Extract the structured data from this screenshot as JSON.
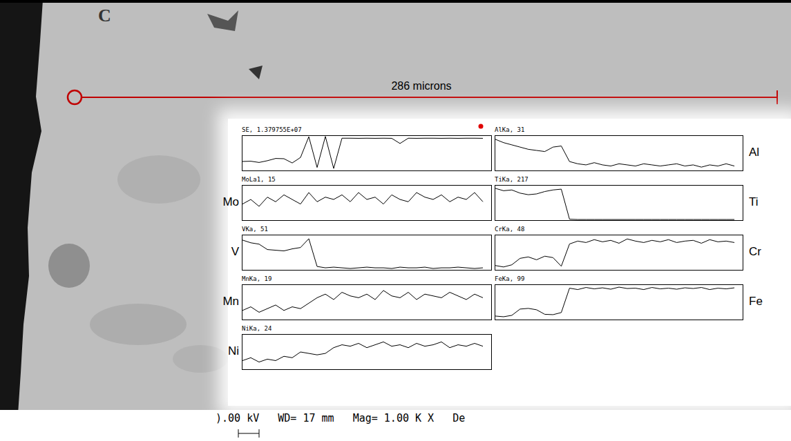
{
  "micrograph": {
    "label": "C",
    "scale_bar": "286 microns",
    "footer": ").00 kV   WD= 17 mm   Mag= 1.00 K X   De"
  },
  "chart_data": [
    {
      "type": "line",
      "title": "SE, 1.379755E+07",
      "tick_labels": false,
      "x": [
        0,
        1,
        2,
        3,
        4,
        5,
        6,
        7,
        8,
        9,
        10,
        11,
        12,
        13,
        14,
        15,
        16,
        17,
        18,
        19,
        20,
        21,
        22,
        23,
        24,
        25,
        26,
        27,
        28,
        29
      ],
      "values": [
        3600000,
        3700000,
        3200000,
        3900000,
        4800000,
        4700000,
        3000000,
        5200000,
        13500000,
        1200000,
        13600000,
        800000,
        12900000,
        12900000,
        12850000,
        12900000,
        12850000,
        12900000,
        12850000,
        10800000,
        12900000,
        12850000,
        12900000,
        12900000,
        12850000,
        12900000,
        12850000,
        12900000,
        12900000,
        12850000
      ],
      "xlim": [
        0,
        30
      ],
      "xticks": [
        0,
        3,
        6,
        9,
        12,
        15,
        18,
        21,
        24,
        27,
        30
      ],
      "ylim": [
        0,
        13797550
      ]
    },
    {
      "type": "line",
      "title": "AlKa, 31",
      "label": "Al",
      "tick_labels": false,
      "x": [
        0,
        1,
        2,
        3,
        4,
        5,
        6,
        7,
        8,
        9,
        10,
        11,
        12,
        13,
        14,
        15,
        16,
        17,
        18,
        19,
        20,
        21,
        22,
        23,
        24,
        25,
        26,
        27,
        28,
        29
      ],
      "values": [
        28,
        25,
        23,
        21,
        19,
        18,
        17,
        21,
        22,
        8,
        6,
        5,
        7,
        5,
        4,
        6,
        5,
        4,
        6,
        5,
        4,
        5,
        6,
        4,
        5,
        3,
        5,
        4,
        6,
        4
      ],
      "xlim": [
        0,
        30
      ],
      "xticks": [
        0,
        3,
        6,
        9,
        12,
        15,
        18,
        21,
        24,
        27,
        30
      ],
      "ylim": [
        0,
        31
      ]
    },
    {
      "type": "line",
      "title": "MoLa1, 15",
      "label": "Mo",
      "tick_labels": false,
      "x": [
        0,
        1,
        2,
        3,
        4,
        5,
        6,
        7,
        8,
        9,
        10,
        11,
        12,
        13,
        14,
        15,
        16,
        17,
        18,
        19,
        20,
        21,
        22,
        23,
        24,
        25,
        26,
        27,
        28,
        29
      ],
      "values": [
        7,
        9,
        6,
        10,
        8,
        11,
        9,
        7,
        12,
        8,
        10,
        9,
        11,
        8,
        12,
        9,
        10,
        7,
        11,
        9,
        8,
        12,
        10,
        9,
        11,
        8,
        10,
        9,
        12,
        8
      ],
      "xlim": [
        0,
        30
      ],
      "xticks": [
        0,
        3,
        6,
        9,
        12,
        15,
        18,
        21,
        24,
        27,
        30
      ],
      "ylim": [
        0,
        15
      ]
    },
    {
      "type": "line",
      "title": "TiKa, 217",
      "label": "Ti",
      "tick_labels": false,
      "x": [
        0,
        1,
        2,
        3,
        4,
        5,
        6,
        7,
        8,
        9,
        10,
        11,
        12,
        13,
        14,
        15,
        16,
        17,
        18,
        19,
        20,
        21,
        22,
        23,
        24,
        25,
        26,
        27,
        28,
        29
      ],
      "values": [
        200,
        185,
        190,
        170,
        160,
        165,
        180,
        190,
        195,
        6,
        4,
        4,
        4,
        4,
        4,
        4,
        4,
        4,
        4,
        4,
        4,
        4,
        4,
        4,
        4,
        4,
        4,
        4,
        4,
        4
      ],
      "xlim": [
        0,
        30
      ],
      "xticks": [
        0,
        3,
        6,
        9,
        12,
        15,
        18,
        21,
        24,
        27,
        30
      ],
      "ylim": [
        0,
        217
      ]
    },
    {
      "type": "line",
      "title": "VKa, 51",
      "label": "V",
      "tick_labels": false,
      "x": [
        0,
        1,
        2,
        3,
        4,
        5,
        6,
        7,
        8,
        9,
        10,
        11,
        12,
        13,
        14,
        15,
        16,
        17,
        18,
        19,
        20,
        21,
        22,
        23,
        24,
        25,
        26,
        27,
        28,
        29
      ],
      "values": [
        44,
        40,
        38,
        30,
        29,
        28,
        31,
        33,
        46,
        5,
        3,
        4,
        3,
        2,
        3,
        4,
        3,
        3,
        2,
        4,
        3,
        3,
        4,
        2,
        3,
        3,
        4,
        3,
        2,
        3
      ],
      "xlim": [
        0,
        30
      ],
      "xticks": [
        0,
        3,
        6,
        9,
        12,
        15,
        18,
        21,
        24,
        27,
        30
      ],
      "ylim": [
        0,
        51
      ]
    },
    {
      "type": "line",
      "title": "CrKa, 48",
      "label": "Cr",
      "tick_labels": false,
      "x": [
        0,
        1,
        2,
        3,
        4,
        5,
        6,
        7,
        8,
        9,
        10,
        11,
        12,
        13,
        14,
        15,
        16,
        17,
        18,
        19,
        20,
        21,
        22,
        23,
        24,
        25,
        26,
        27,
        28,
        29
      ],
      "values": [
        6,
        4,
        7,
        16,
        18,
        14,
        19,
        17,
        5,
        36,
        40,
        38,
        42,
        39,
        41,
        37,
        43,
        40,
        38,
        41,
        39,
        42,
        38,
        40,
        41,
        37,
        42,
        39,
        40,
        38
      ],
      "xlim": [
        0,
        30
      ],
      "xticks": [
        0,
        3,
        6,
        9,
        12,
        15,
        18,
        21,
        24,
        27,
        30
      ],
      "ylim": [
        0,
        48
      ]
    },
    {
      "type": "line",
      "title": "MnKa, 19",
      "label": "Mn",
      "tick_labels": false,
      "x": [
        0,
        1,
        2,
        3,
        4,
        5,
        6,
        7,
        8,
        9,
        10,
        11,
        12,
        13,
        14,
        15,
        16,
        17,
        18,
        19,
        20,
        21,
        22,
        23,
        24,
        25,
        26,
        27,
        28,
        29
      ],
      "values": [
        5,
        7,
        4,
        6,
        8,
        5,
        7,
        6,
        9,
        12,
        14,
        11,
        15,
        13,
        12,
        14,
        11,
        16,
        13,
        12,
        15,
        11,
        14,
        13,
        12,
        15,
        13,
        11,
        14,
        12
      ],
      "xlim": [
        0,
        30
      ],
      "xticks": [
        0,
        3,
        6,
        9,
        12,
        15,
        18,
        21,
        24,
        27,
        30
      ],
      "ylim": [
        0,
        19
      ]
    },
    {
      "type": "line",
      "title": "FeKa, 99",
      "label": "Fe",
      "tick_labels": false,
      "x": [
        0,
        1,
        2,
        3,
        4,
        5,
        6,
        7,
        8,
        9,
        10,
        11,
        12,
        13,
        14,
        15,
        16,
        17,
        18,
        19,
        20,
        21,
        22,
        23,
        24,
        25,
        26,
        27,
        28,
        29
      ],
      "values": [
        10,
        8,
        12,
        30,
        32,
        28,
        15,
        14,
        20,
        90,
        86,
        92,
        88,
        91,
        87,
        93,
        89,
        90,
        86,
        92,
        88,
        90,
        87,
        91,
        89,
        92,
        86,
        90,
        88,
        91
      ],
      "xlim": [
        0,
        30
      ],
      "xticks": [
        0,
        3,
        6,
        9,
        12,
        15,
        18,
        21,
        24,
        27,
        30
      ],
      "ylim": [
        0,
        99
      ]
    },
    {
      "type": "line",
      "title": "NiKa, 24",
      "label": "Ni",
      "tick_labels": false,
      "x": [
        0,
        1,
        2,
        3,
        4,
        5,
        6,
        7,
        8,
        9,
        10,
        11,
        12,
        13,
        14,
        15,
        16,
        17,
        18,
        19,
        20,
        21,
        22,
        23,
        24,
        25,
        26,
        27,
        28,
        29
      ],
      "values": [
        6,
        8,
        5,
        7,
        6,
        9,
        8,
        12,
        11,
        10,
        11,
        15,
        17,
        16,
        18,
        15,
        17,
        19,
        16,
        17,
        15,
        18,
        16,
        17,
        19,
        15,
        17,
        16,
        18,
        16
      ],
      "xlim": [
        0,
        30
      ],
      "xticks": [
        0,
        3,
        6,
        9,
        12,
        15,
        18,
        21,
        24,
        27,
        30
      ],
      "ylim": [
        0,
        24
      ]
    }
  ]
}
